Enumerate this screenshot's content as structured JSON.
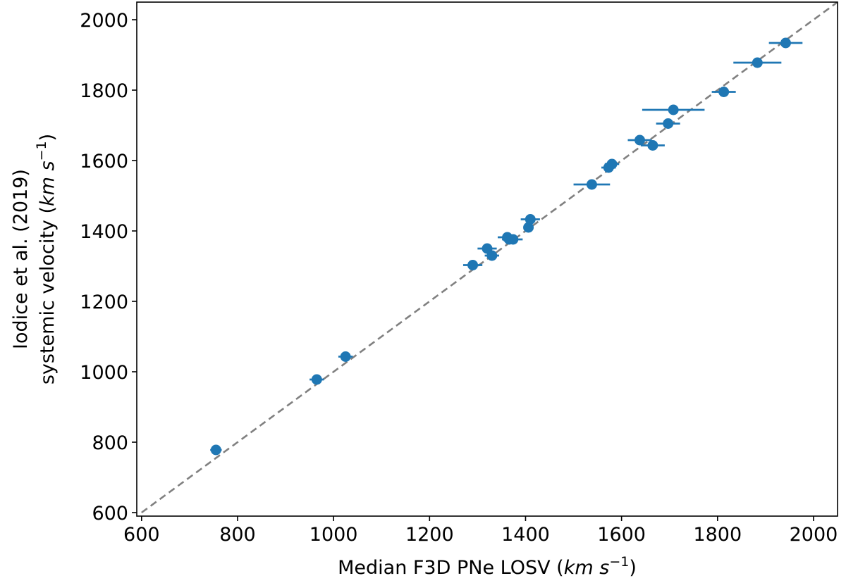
{
  "chart_data": {
    "type": "scatter",
    "title": "",
    "xlabel": {
      "text": "Median F3D PNe LOSV (",
      "unit_math": "km s",
      "exp": "−1",
      "close": ")"
    },
    "ylabel": {
      "line1": "Iodice et al. (2019)",
      "line2": "systemic velocity (",
      "unit_math": "km s",
      "exp": "−1",
      "close": ")"
    },
    "xlim": [
      590,
      2050
    ],
    "ylim": [
      590,
      2050
    ],
    "xticks": [
      600,
      800,
      1000,
      1200,
      1400,
      1600,
      1800,
      2000
    ],
    "yticks": [
      600,
      800,
      1000,
      1200,
      1400,
      1600,
      1800,
      2000
    ],
    "xtick_labels": [
      "600",
      "800",
      "1000",
      "1200",
      "1400",
      "1600",
      "1800",
      "2000"
    ],
    "ytick_labels": [
      "600",
      "800",
      "1000",
      "1200",
      "1400",
      "1600",
      "1800",
      "2000"
    ],
    "grid": false,
    "legend": null,
    "reference_line": {
      "style": "dashed",
      "color": "#808080",
      "from": [
        600,
        600
      ],
      "to": [
        2050,
        2050
      ],
      "meaning": "y = x"
    },
    "marker_color": "#1f77b4",
    "points": [
      {
        "x": 755,
        "y": 778,
        "xerr": 12
      },
      {
        "x": 965,
        "y": 978,
        "xerr": 15
      },
      {
        "x": 1025,
        "y": 1043,
        "xerr": 15
      },
      {
        "x": 1290,
        "y": 1303,
        "xerr": 20
      },
      {
        "x": 1320,
        "y": 1350,
        "xerr": 20
      },
      {
        "x": 1330,
        "y": 1330,
        "xerr": 15
      },
      {
        "x": 1362,
        "y": 1382,
        "xerr": 20
      },
      {
        "x": 1366,
        "y": 1376,
        "xerr": 15
      },
      {
        "x": 1374,
        "y": 1376,
        "xerr": 20
      },
      {
        "x": 1406,
        "y": 1410,
        "xerr": 10
      },
      {
        "x": 1410,
        "y": 1433,
        "xerr": 20
      },
      {
        "x": 1538,
        "y": 1532,
        "xerr": 38
      },
      {
        "x": 1573,
        "y": 1580,
        "xerr": 15
      },
      {
        "x": 1580,
        "y": 1590,
        "xerr": 15
      },
      {
        "x": 1638,
        "y": 1658,
        "xerr": 25
      },
      {
        "x": 1665,
        "y": 1643,
        "xerr": 25
      },
      {
        "x": 1697,
        "y": 1705,
        "xerr": 25
      },
      {
        "x": 1708,
        "y": 1744,
        "xerr": 65
      },
      {
        "x": 1813,
        "y": 1795,
        "xerr": 25
      },
      {
        "x": 1883,
        "y": 1878,
        "xerr": 50
      },
      {
        "x": 1942,
        "y": 1934,
        "xerr": 35
      }
    ]
  }
}
